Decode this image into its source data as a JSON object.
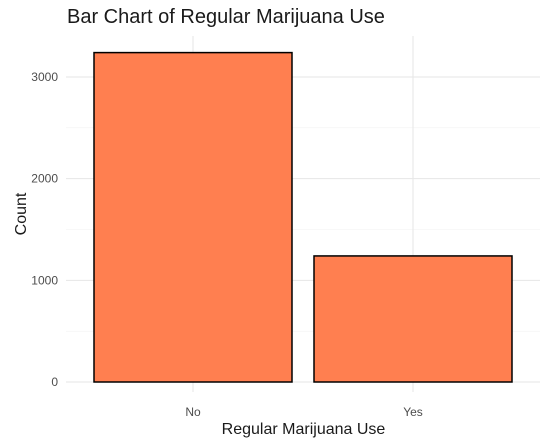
{
  "chart_data": {
    "type": "bar",
    "title": "Bar Chart of Regular Marijuana Use",
    "xlabel": "Regular Marijuana Use",
    "ylabel": "Count",
    "categories": [
      "No",
      "Yes"
    ],
    "values": [
      3240,
      1240
    ],
    "ylim": [
      0,
      3400
    ],
    "yticks": [
      0,
      1000,
      2000,
      3000
    ],
    "grid": true,
    "legend": "none",
    "bar_color": "#FF7F50",
    "bar_edge_color": "#000000"
  }
}
